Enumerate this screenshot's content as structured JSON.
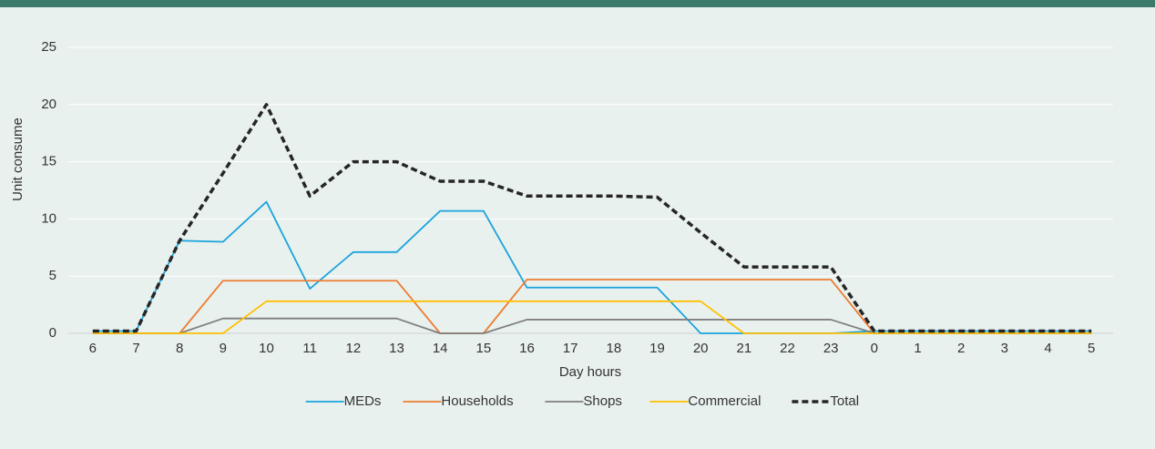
{
  "chart_data": {
    "type": "line",
    "x_label": "Day hours",
    "y_label": "Unit consume",
    "categories": [
      "6",
      "7",
      "8",
      "9",
      "10",
      "11",
      "12",
      "13",
      "14",
      "15",
      "16",
      "17",
      "18",
      "19",
      "20",
      "21",
      "22",
      "23",
      "0",
      "1",
      "2",
      "3",
      "4",
      "5"
    ],
    "series": [
      {
        "name": "MEDs",
        "color": "#1aa3dc",
        "values": [
          0.2,
          0.2,
          8.1,
          8,
          11.5,
          3.9,
          7.1,
          7.1,
          10.7,
          10.7,
          4,
          4,
          4,
          4,
          0,
          0,
          0,
          0,
          0.2,
          0.2,
          0.2,
          0.2,
          0.2,
          0.2
        ]
      },
      {
        "name": "Households",
        "color": "#ed7d31",
        "values": [
          0,
          0,
          0,
          4.6,
          4.6,
          4.6,
          4.6,
          4.6,
          0,
          0,
          4.7,
          4.7,
          4.7,
          4.7,
          4.7,
          4.7,
          4.7,
          4.7,
          0,
          0,
          0,
          0,
          0,
          0
        ]
      },
      {
        "name": "Shops",
        "color": "#7f7f7f",
        "values": [
          0,
          0,
          0,
          1.3,
          1.3,
          1.3,
          1.3,
          1.3,
          0,
          0,
          1.2,
          1.2,
          1.2,
          1.2,
          1.2,
          1.2,
          1.2,
          1.2,
          0,
          0,
          0,
          0,
          0,
          0
        ]
      },
      {
        "name": "Commercial",
        "color": "#ffc000",
        "values": [
          0,
          0,
          0,
          0,
          2.8,
          2.8,
          2.8,
          2.8,
          2.8,
          2.8,
          2.8,
          2.8,
          2.8,
          2.8,
          2.8,
          0,
          0,
          0,
          0,
          0,
          0,
          0,
          0,
          0
        ]
      },
      {
        "name": "Total",
        "color": "#262626",
        "dashed": true,
        "values": [
          0.2,
          0.2,
          8.1,
          14,
          20,
          12,
          15,
          15,
          13.3,
          13.3,
          12,
          12,
          12,
          11.9,
          8.8,
          5.8,
          5.8,
          5.8,
          0.2,
          0.2,
          0.2,
          0.2,
          0.2,
          0.2
        ]
      }
    ],
    "ylim": [
      0,
      25
    ],
    "yticks": [
      0,
      5,
      10,
      15,
      20,
      25
    ],
    "grid": true,
    "legend": "bottom"
  }
}
